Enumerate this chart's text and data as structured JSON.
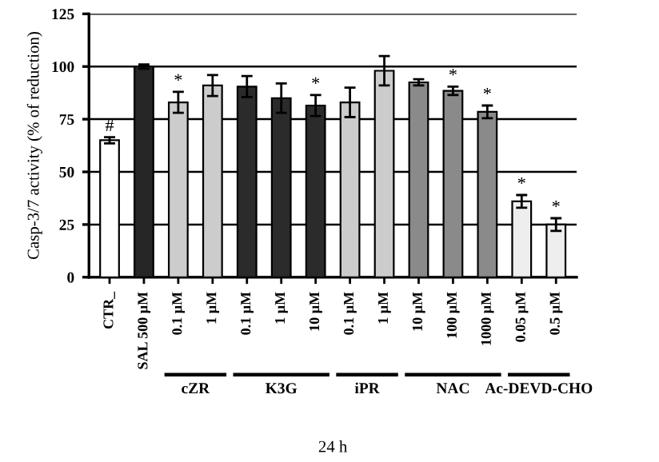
{
  "chart_data": {
    "type": "bar",
    "ylabel": "Casp-3/7 activity (% of reduction)",
    "xlabel": "24 h",
    "categories": [
      "CTR_",
      "SAL 500 µM",
      "0.1 µM",
      "1 µM",
      "0.1 µM",
      "1 µM",
      "10 µM",
      "0.1 µM",
      "1 µM",
      "10 µM",
      "100 µM",
      "1000 µM",
      "0.05 µM",
      "0.5 µM"
    ],
    "values": [
      65,
      100,
      83,
      91,
      90.5,
      85,
      81.5,
      83,
      98,
      92.5,
      88.5,
      78.5,
      36,
      25
    ],
    "errors": [
      1.5,
      1,
      5,
      5,
      5,
      7,
      5,
      7,
      7,
      1.5,
      2,
      3,
      3,
      3
    ],
    "colors": [
      "#ffffff",
      "#262626",
      "#cccccc",
      "#cccccc",
      "#2b2b2b",
      "#2b2b2b",
      "#2b2b2b",
      "#cccccc",
      "#cccccc",
      "#8a8a8a",
      "#8a8a8a",
      "#8a8a8a",
      "#eeeeee",
      "#eeeeee"
    ],
    "value_labels": [
      "#",
      null,
      "*",
      null,
      null,
      null,
      "*",
      null,
      null,
      null,
      "*",
      "*",
      "*",
      "*"
    ],
    "annotations": [
      "cZR",
      "K3G",
      "iPR",
      "NAC",
      "Ac-DEVD-CHO"
    ],
    "ylim": [
      0,
      125
    ],
    "yticks": [
      0,
      25,
      50,
      75,
      100,
      125
    ],
    "grid": "y",
    "legend": false
  }
}
